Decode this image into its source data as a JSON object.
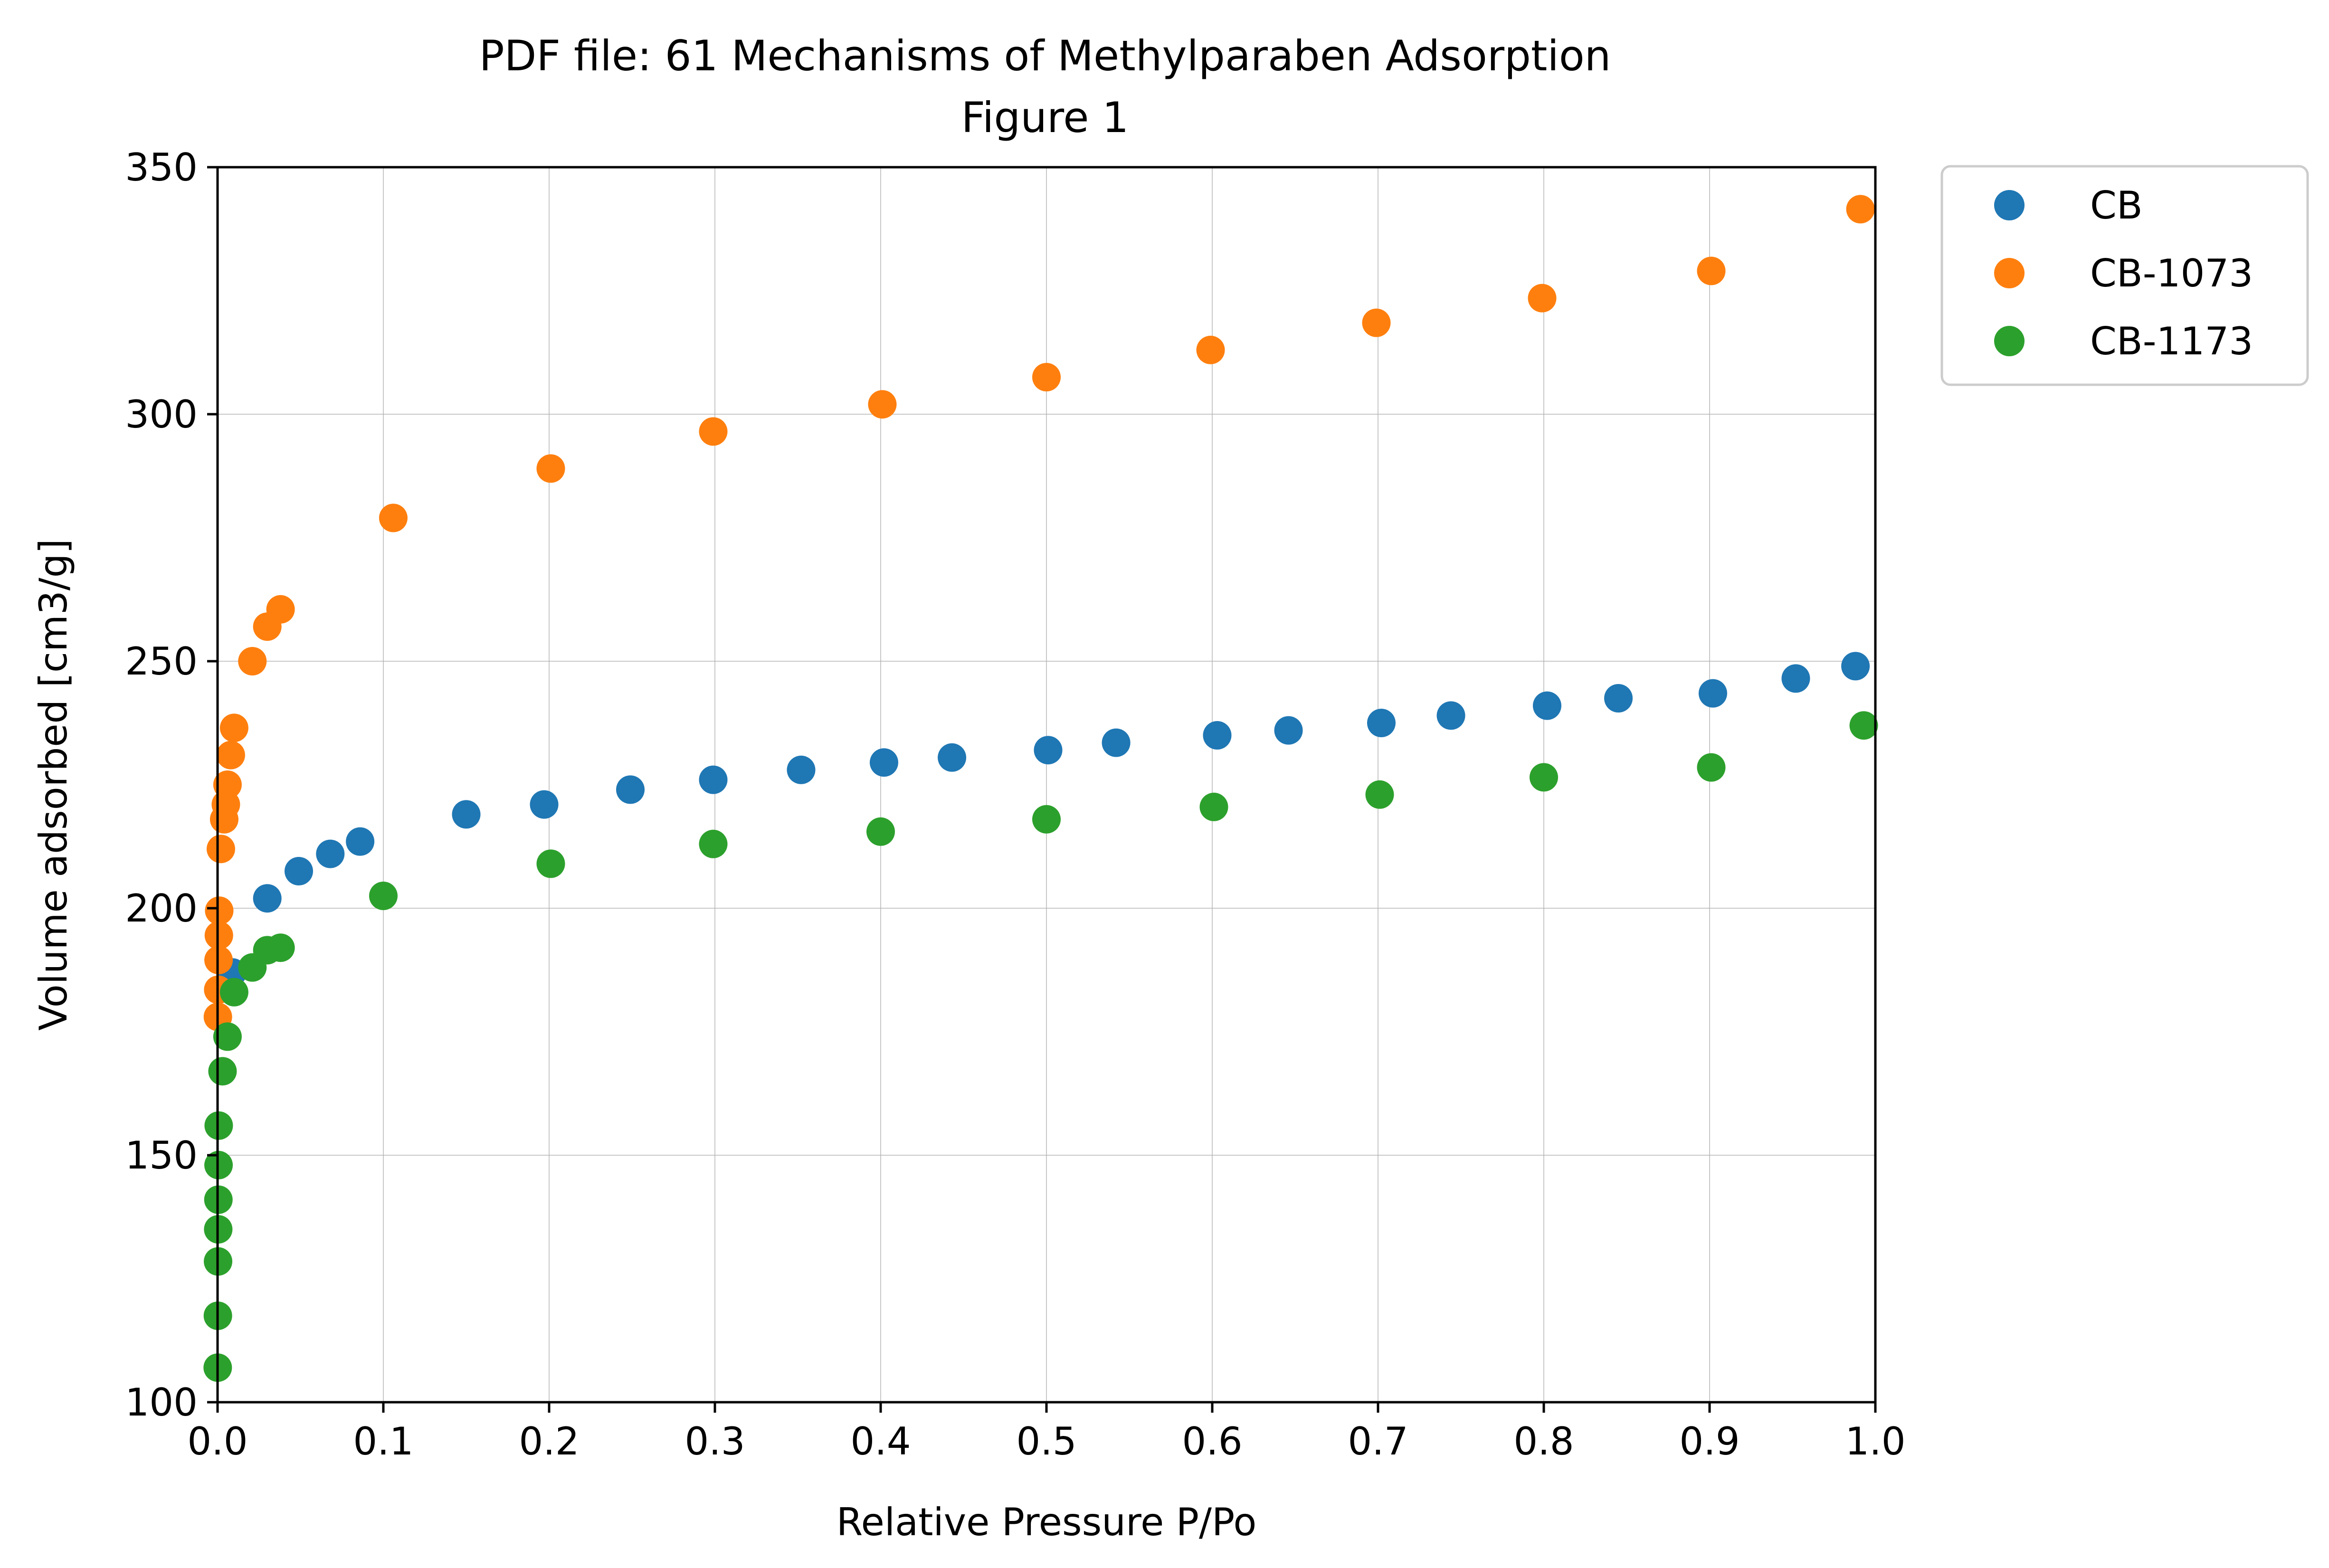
{
  "chart_data": {
    "type": "scatter",
    "title": "PDF file: 61 Mechanisms of Methylparaben Adsorption",
    "subtitle": "Figure 1",
    "xlabel": "Relative Pressure P/Po",
    "ylabel": "Volume adsorbed [cm3/g]",
    "xlim": [
      0.0,
      1.0
    ],
    "ylim": [
      100,
      350
    ],
    "xticks": [
      "0.0",
      "0.1",
      "0.2",
      "0.3",
      "0.4",
      "0.5",
      "0.6",
      "0.7",
      "0.8",
      "0.9",
      "1.0"
    ],
    "yticks": [
      "100",
      "150",
      "200",
      "250",
      "300",
      "350"
    ],
    "grid": true,
    "legend_position": "outside-top-right",
    "series": [
      {
        "name": "CB",
        "color": "#1f77b4",
        "x": [
          0.009,
          0.03,
          0.049,
          0.068,
          0.086,
          0.15,
          0.197,
          0.249,
          0.299,
          0.352,
          0.402,
          0.443,
          0.501,
          0.542,
          0.603,
          0.646,
          0.702,
          0.744,
          0.802,
          0.845,
          0.902,
          0.952,
          0.988
        ],
        "y": [
          187,
          202,
          207.5,
          211,
          213.5,
          219,
          221,
          224,
          226,
          228,
          229.5,
          230.5,
          232,
          233.5,
          235,
          236,
          237.5,
          239,
          241,
          242.5,
          243.5,
          246.5,
          249
        ]
      },
      {
        "name": "CB-1073",
        "color": "#ff7f0e",
        "x": [
          0.0002,
          0.0004,
          0.0006,
          0.0008,
          0.001,
          0.002,
          0.004,
          0.005,
          0.006,
          0.008,
          0.01,
          0.021,
          0.03,
          0.038,
          0.106,
          0.201,
          0.299,
          0.401,
          0.5,
          0.599,
          0.699,
          0.799,
          0.901,
          0.991
        ],
        "y": [
          178,
          183.5,
          189.5,
          194.5,
          199.5,
          212,
          218,
          221,
          225,
          231,
          236.5,
          250,
          257,
          260.5,
          279,
          289,
          296.5,
          302,
          307.5,
          313,
          318.5,
          323.5,
          329,
          341.5
        ]
      },
      {
        "name": "CB-1173",
        "color": "#2ca02c",
        "x": [
          0.0001,
          0.0002,
          0.0003,
          0.0004,
          0.0005,
          0.0006,
          0.0007,
          0.003,
          0.006,
          0.01,
          0.021,
          0.03,
          0.038,
          0.1,
          0.201,
          0.299,
          0.4,
          0.5,
          0.601,
          0.701,
          0.8,
          0.901,
          0.993
        ],
        "y": [
          107,
          117.5,
          128.5,
          135,
          141,
          148,
          156,
          167,
          174,
          183,
          188,
          191.5,
          192,
          202.5,
          209,
          213,
          215.5,
          218,
          220.5,
          223,
          226.5,
          228.5,
          237
        ]
      }
    ]
  }
}
